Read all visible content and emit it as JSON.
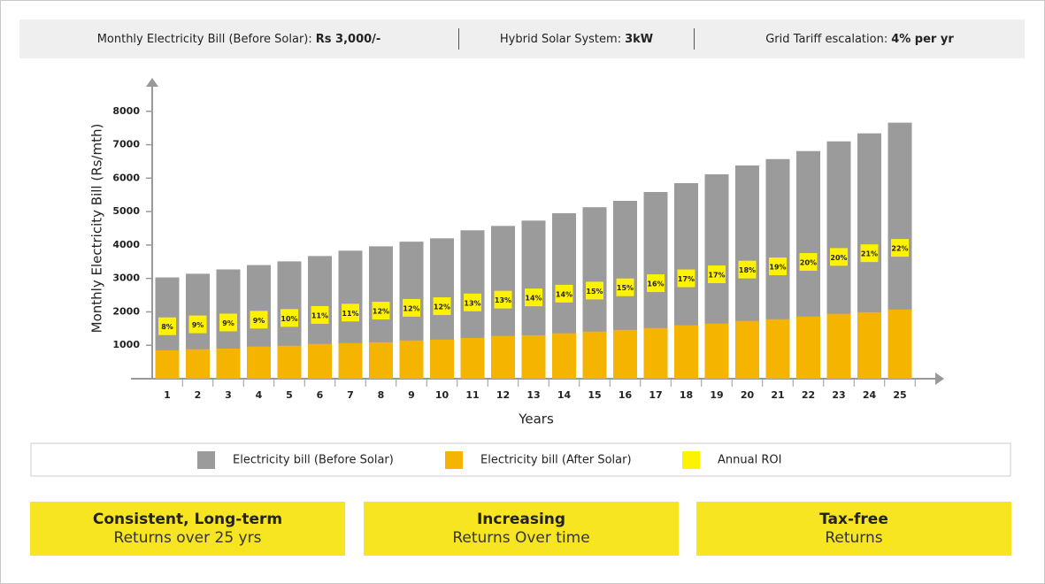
{
  "header": {
    "items": [
      {
        "label": "Monthly Electricity Bill (Before Solar):",
        "value": "Rs 3,000/-"
      },
      {
        "label": "Hybrid Solar System:",
        "value": "3kW"
      },
      {
        "label": "Grid Tariff escalation:",
        "value": "4% per yr"
      }
    ]
  },
  "chart_data": {
    "type": "bar",
    "y_label": "Monthly Electricity Bill (Rs/mth)",
    "x_label": "Years",
    "categories": [
      "1",
      "2",
      "3",
      "4",
      "5",
      "6",
      "7",
      "8",
      "9",
      "10",
      "11",
      "12",
      "13",
      "14",
      "15",
      "16",
      "17",
      "18",
      "19",
      "20",
      "21",
      "22",
      "23",
      "24",
      "25"
    ],
    "ylim": [
      0,
      9000
    ],
    "yticks": [
      1000,
      2000,
      3000,
      4000,
      5000,
      6000,
      7000,
      8000
    ],
    "grid": false,
    "series": [
      {
        "name": "Electricity bill (Before Solar)",
        "color": "#9b9b9b",
        "values": [
          3030,
          3140,
          3270,
          3400,
          3510,
          3670,
          3830,
          3960,
          4100,
          4200,
          4440,
          4570,
          4730,
          4950,
          5130,
          5320,
          5585,
          5850,
          6115,
          6380,
          6570,
          6810,
          7100,
          7340,
          7660
        ]
      },
      {
        "name": "Electricity bill (After Solar)",
        "color": "#f5b400",
        "values": [
          850,
          880,
          900,
          960,
          985,
          1040,
          1065,
          1090,
          1145,
          1170,
          1220,
          1280,
          1300,
          1360,
          1410,
          1460,
          1515,
          1600,
          1650,
          1730,
          1780,
          1860,
          1940,
          1990,
          2070
        ]
      },
      {
        "name": "Annual ROI",
        "color": "#fff200",
        "values": [
          8,
          9,
          9,
          9,
          10,
          11,
          11,
          12,
          12,
          12,
          13,
          13,
          14,
          14,
          15,
          15,
          16,
          17,
          17,
          18,
          19,
          20,
          20,
          21,
          22
        ],
        "value_labels": [
          "8%",
          "9%",
          "9%",
          "9%",
          "10%",
          "11%",
          "11%",
          "12%",
          "12%",
          "12%",
          "13%",
          "13%",
          "14%",
          "14%",
          "15%",
          "15%",
          "16%",
          "17%",
          "17%",
          "18%",
          "19%",
          "20%",
          "20%",
          "21%",
          "22%"
        ]
      }
    ]
  },
  "features": [
    {
      "title": "Consistent, Long-term",
      "subtitle": "Returns over 25 yrs"
    },
    {
      "title": "Increasing",
      "subtitle": "Returns Over time"
    },
    {
      "title": "Tax-free",
      "subtitle": "Returns"
    }
  ]
}
